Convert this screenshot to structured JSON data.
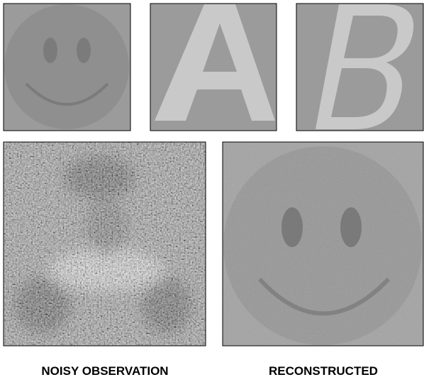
{
  "panels": [
    {
      "label": "NOISY OBSERVATION"
    },
    {
      "label": "RECONSTRUCTED"
    }
  ]
}
